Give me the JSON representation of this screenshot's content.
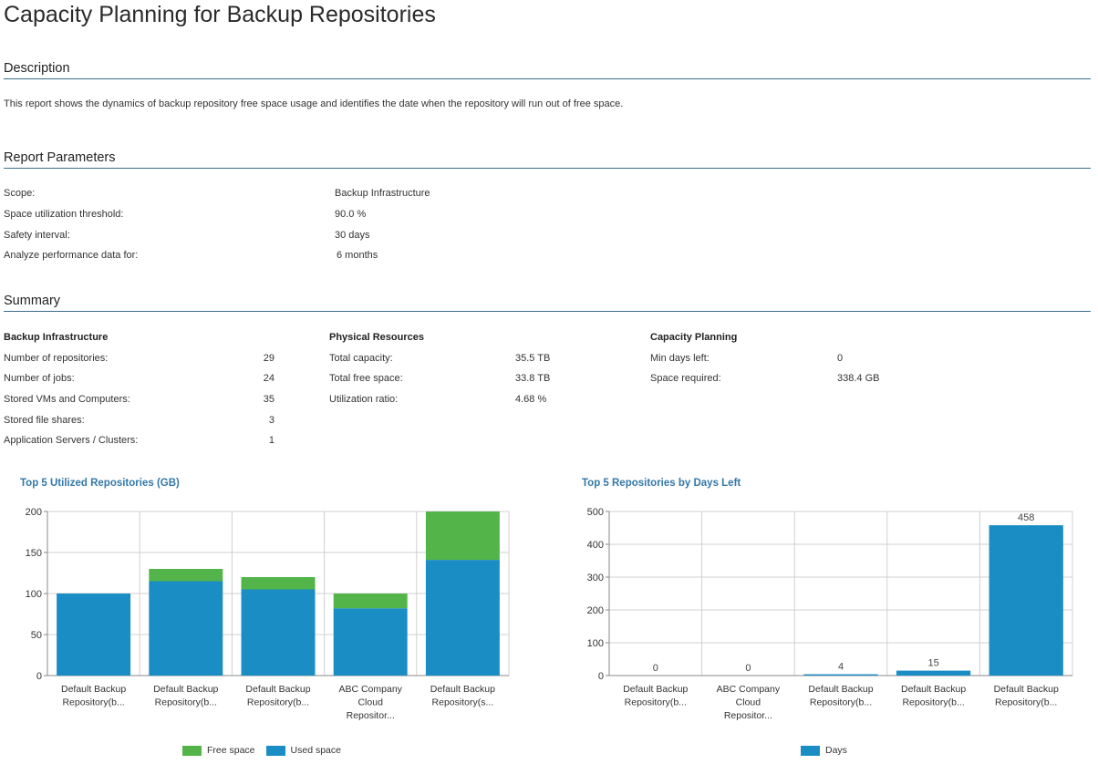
{
  "title": "Capacity Planning for Backup Repositories",
  "description": {
    "heading": "Description",
    "text": "This report shows the dynamics of backup repository free space usage and identifies the date when the repository will run out of free space."
  },
  "parameters": {
    "heading": "Report Parameters",
    "rows": [
      {
        "label": "Scope:",
        "value": "Backup Infrastructure"
      },
      {
        "label": "Space utilization threshold:",
        "value": "90.0 %"
      },
      {
        "label": "Safety interval:",
        "value": "30 days"
      },
      {
        "label": "Analyze performance data for:",
        "value": "6 months"
      }
    ]
  },
  "summary": {
    "heading": "Summary",
    "backup_infrastructure": {
      "heading": "Backup Infrastructure",
      "rows": [
        {
          "label": "Number of repositories:",
          "value": "29"
        },
        {
          "label": "Number of jobs:",
          "value": "24"
        },
        {
          "label": "Stored VMs and Computers:",
          "value": "35"
        },
        {
          "label": "Stored file shares:",
          "value": "3"
        },
        {
          "label": "Application Servers / Clusters:",
          "value": "1"
        }
      ]
    },
    "physical_resources": {
      "heading": "Physical Resources",
      "rows": [
        {
          "label": "Total capacity:",
          "value": "35.5 TB"
        },
        {
          "label": "Total free space:",
          "value": "33.8 TB"
        },
        {
          "label": "Utilization ratio:",
          "value": "4.68 %"
        }
      ]
    },
    "capacity_planning": {
      "heading": "Capacity Planning",
      "rows": [
        {
          "label": "Min days left:",
          "value": "0"
        },
        {
          "label": "Space required:",
          "value": "338.4 GB"
        }
      ]
    }
  },
  "colors": {
    "used": "#1b8dc5",
    "free": "#52b449",
    "days": "#1b8dc5",
    "grid": "#d0d0d0",
    "axis": "#888888"
  },
  "chart_data": [
    {
      "type": "bar",
      "stacked": true,
      "title": "Top 5 Utilized Repositories (GB)",
      "categories": [
        [
          "Default Backup",
          "Repository(b..."
        ],
        [
          "Default Backup",
          "Repository(b..."
        ],
        [
          "Default Backup",
          "Repository(b..."
        ],
        [
          "ABC Company",
          "Cloud",
          "Repositor..."
        ],
        [
          "Default Backup",
          "Repository(s..."
        ]
      ],
      "series": [
        {
          "name": "Used space",
          "color": "#1b8dc5",
          "values": [
            100,
            115,
            105,
            82,
            141
          ]
        },
        {
          "name": "Free space",
          "color": "#52b449",
          "values": [
            0,
            15,
            15,
            18,
            59
          ]
        }
      ],
      "legend_order": [
        "Free space",
        "Used space"
      ],
      "ylim": [
        0,
        200
      ],
      "yticks": [
        0,
        50,
        100,
        150,
        200
      ],
      "grid": true,
      "legend": "bottom"
    },
    {
      "type": "bar",
      "title": "Top 5 Repositories by Days Left",
      "categories": [
        [
          "Default Backup",
          "Repository(b..."
        ],
        [
          "ABC Company",
          "Cloud",
          "Repositor..."
        ],
        [
          "Default Backup",
          "Repository(b..."
        ],
        [
          "Default Backup",
          "Repository(b..."
        ],
        [
          "Default Backup",
          "Repository(b..."
        ]
      ],
      "series": [
        {
          "name": "Days",
          "color": "#1b8dc5",
          "values": [
            0,
            0,
            4,
            15,
            458
          ]
        }
      ],
      "data_labels": [
        "0",
        "0",
        "4",
        "15",
        "458"
      ],
      "ylim": [
        0,
        500
      ],
      "yticks": [
        0,
        100,
        200,
        300,
        400,
        500
      ],
      "grid": true,
      "legend": "bottom"
    }
  ]
}
